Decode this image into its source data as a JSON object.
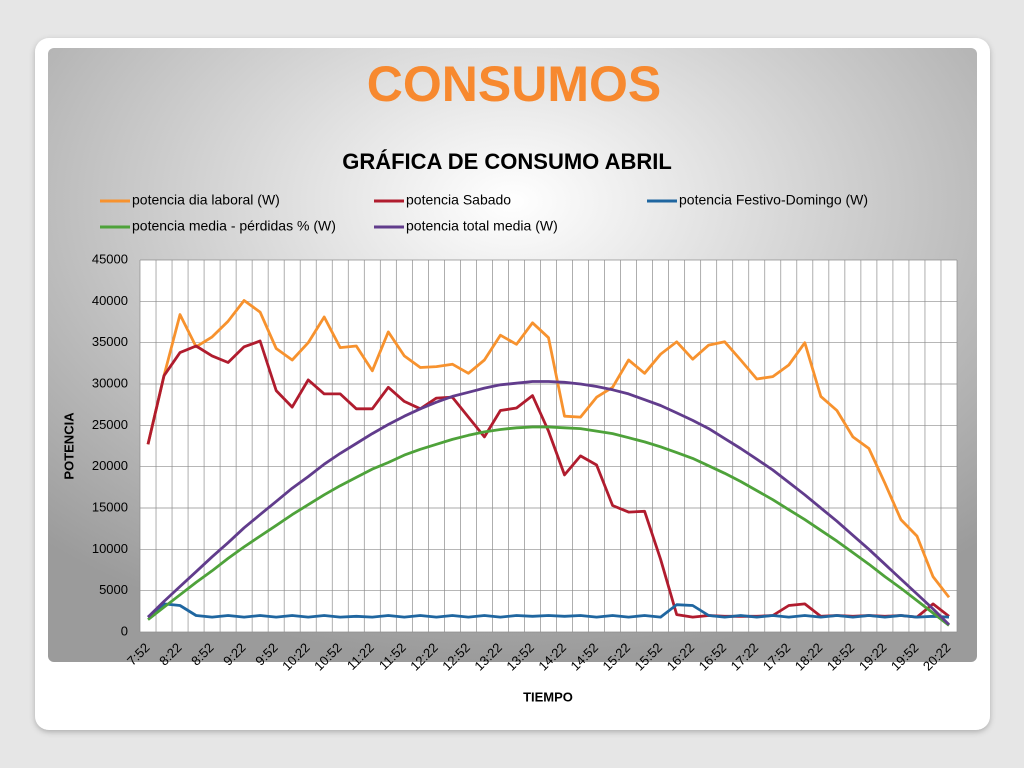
{
  "slide_title": "CONSUMOS",
  "chart_data": {
    "type": "line",
    "title": "GRÁFICA DE CONSUMO ABRIL",
    "x_label": "TIEMPO",
    "y_label": "POTENCIA",
    "categories": [
      "7:52",
      null,
      "8:22",
      null,
      "8:52",
      null,
      "9:22",
      null,
      "9:52",
      null,
      "10:22",
      null,
      "10:52",
      null,
      "11:22",
      null,
      "11:52",
      null,
      "12:22",
      null,
      "12:52",
      null,
      "13:22",
      null,
      "13:52",
      null,
      "14:22",
      null,
      "14:52",
      null,
      "15:22",
      null,
      "15:52",
      null,
      "16:22",
      null,
      "16:52",
      null,
      "17:22",
      null,
      "17:52",
      null,
      "18:22",
      null,
      "18:52",
      null,
      "19:22",
      null,
      "19:52",
      null,
      "20:22"
    ],
    "ylim": [
      0,
      45000
    ],
    "yticks": [
      0,
      5000,
      10000,
      15000,
      20000,
      25000,
      30000,
      35000,
      40000,
      45000
    ],
    "grid": true,
    "series": [
      {
        "name": "potencia dia laboral (W)",
        "color": "#f7922e",
        "values": [
          22700,
          31000,
          38400,
          34500,
          35700,
          37600,
          40100,
          38700,
          34300,
          32900,
          35000,
          38100,
          34400,
          34600,
          31600,
          36300,
          33400,
          32000,
          32100,
          32400,
          31300,
          32900,
          35900,
          34800,
          37400,
          35600,
          26100,
          26000,
          28400,
          29600,
          32900,
          31300,
          33600,
          35100,
          33000,
          34700,
          35100,
          32900,
          30600,
          30900,
          32300,
          35000,
          28500,
          26800,
          23600,
          22200,
          18000,
          13600,
          11600,
          6700,
          4200
        ]
      },
      {
        "name": "potencia Sabado",
        "color": "#b01c2e",
        "values": [
          22700,
          31000,
          33800,
          34600,
          33400,
          32600,
          34500,
          35200,
          29200,
          27200,
          30500,
          28800,
          28800,
          27000,
          27000,
          29600,
          27900,
          27000,
          28300,
          28400,
          26000,
          23600,
          26800,
          27100,
          28600,
          24300,
          19000,
          21300,
          20200,
          15300,
          14500,
          14600,
          8800,
          2100,
          1800,
          2000,
          1900,
          1900,
          1900,
          2000,
          3200,
          3400,
          1900,
          2000,
          1900,
          2000,
          1900,
          2000,
          1800,
          3400,
          1900
        ]
      },
      {
        "name": "potencia Festivo-Domingo (W)",
        "color": "#1f66a0",
        "values": [
          1800,
          3400,
          3200,
          2000,
          1800,
          2000,
          1800,
          2000,
          1800,
          2000,
          1800,
          2000,
          1800,
          1900,
          1800,
          2000,
          1800,
          2000,
          1800,
          2000,
          1800,
          2000,
          1800,
          2000,
          1900,
          2000,
          1900,
          2000,
          1800,
          2000,
          1800,
          2000,
          1800,
          3300,
          3200,
          2000,
          1800,
          2000,
          1800,
          2000,
          1800,
          2000,
          1800,
          2000,
          1800,
          2000,
          1800,
          2000,
          1800,
          1900,
          1800
        ]
      },
      {
        "name": "potencia media - pérdidas % (W)",
        "color": "#4ea23a",
        "values": [
          1500,
          3000,
          4500,
          6000,
          7400,
          8900,
          10300,
          11600,
          12900,
          14200,
          15400,
          16600,
          17700,
          18700,
          19700,
          20500,
          21400,
          22100,
          22700,
          23300,
          23800,
          24200,
          24500,
          24700,
          24800,
          24800,
          24700,
          24600,
          24300,
          24000,
          23500,
          23000,
          22400,
          21700,
          21000,
          20100,
          19200,
          18200,
          17100,
          16000,
          14800,
          13600,
          12300,
          11000,
          9600,
          8200,
          6700,
          5300,
          3800,
          2300,
          800
        ]
      },
      {
        "name": "potencia total  media (W)",
        "color": "#613c8c",
        "values": [
          1800,
          3700,
          5500,
          7300,
          9100,
          10800,
          12600,
          14200,
          15800,
          17400,
          18800,
          20300,
          21600,
          22800,
          24000,
          25100,
          26100,
          27000,
          27800,
          28500,
          29000,
          29500,
          29900,
          30100,
          30300,
          30300,
          30200,
          30000,
          29700,
          29300,
          28800,
          28100,
          27400,
          26500,
          25600,
          24600,
          23400,
          22200,
          20900,
          19600,
          18100,
          16600,
          15000,
          13400,
          11700,
          10000,
          8200,
          6400,
          4600,
          2800,
          900
        ]
      }
    ]
  }
}
